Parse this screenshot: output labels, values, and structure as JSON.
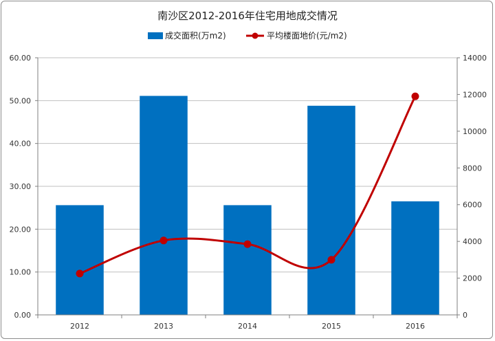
{
  "chart_data": {
    "type": "bar",
    "title": "南沙区2012-2016年住宅用地成交情况",
    "categories": [
      "2012",
      "2013",
      "2014",
      "2015",
      "2016"
    ],
    "series": [
      {
        "name": "成交面积(万m2)",
        "type": "bar",
        "axis": "left",
        "color": "#0070c0",
        "values": [
          25.6,
          51.1,
          25.6,
          48.8,
          26.5
        ]
      },
      {
        "name": "平均楼面地价(元/m2)",
        "type": "line",
        "axis": "right",
        "color": "#c00000",
        "smooth": true,
        "values": [
          2250,
          4050,
          3850,
          3000,
          11900
        ]
      }
    ],
    "y_left": {
      "min": 0,
      "max": 60,
      "step": 10,
      "ticks": [
        "0.00",
        "10.00",
        "20.00",
        "30.00",
        "40.00",
        "50.00",
        "60.00"
      ]
    },
    "y_right": {
      "min": 0,
      "max": 14000,
      "step": 2000,
      "ticks": [
        "0",
        "2000",
        "4000",
        "6000",
        "8000",
        "10000",
        "12000",
        "14000"
      ]
    },
    "legend_position": "top",
    "grid": true
  }
}
